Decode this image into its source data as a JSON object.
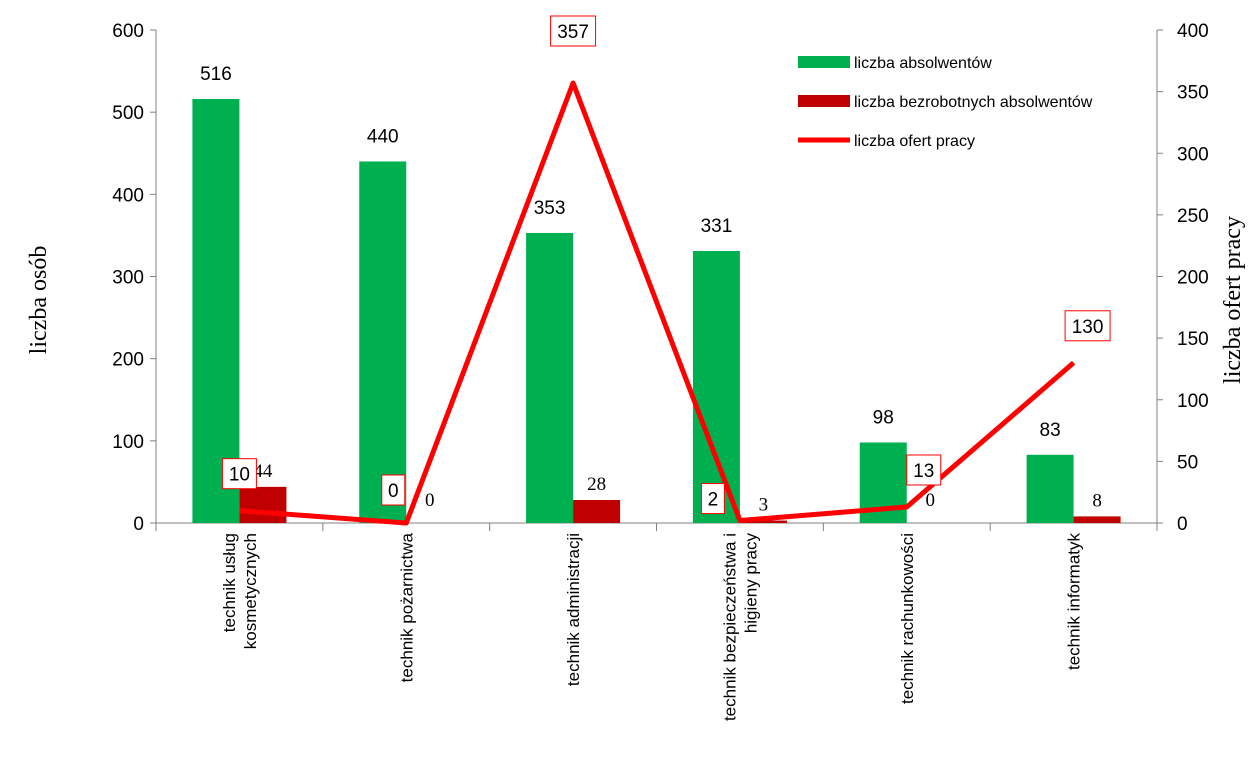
{
  "chart_data": {
    "type": "bar",
    "title": "",
    "categories": [
      [
        "technik usług",
        "kosmetycznych"
      ],
      [
        "technik pożarnictwa"
      ],
      [
        "technik administracji"
      ],
      [
        "technik bezpieczeństwa i",
        "higieny pracy"
      ],
      [
        "technik rachunkowości"
      ],
      [
        "technik informatyk"
      ]
    ],
    "ylabel_left": "liczba osób",
    "ylabel_right": "liczba ofert pracy",
    "ylim_left": [
      0,
      600
    ],
    "ylim_right": [
      0,
      400
    ],
    "yticks_left": [
      0,
      100,
      200,
      300,
      400,
      500,
      600
    ],
    "yticks_right": [
      0,
      50,
      100,
      150,
      200,
      250,
      300,
      350,
      400
    ],
    "series": [
      {
        "name": "liczba absolwentów",
        "type": "bar",
        "axis": "left",
        "color": "#00B050",
        "values": [
          516,
          440,
          353,
          331,
          98,
          83
        ],
        "labels": [
          "516",
          "440",
          "353",
          "331",
          "98",
          "83"
        ]
      },
      {
        "name": "liczba bezrobotnych absolwentów",
        "type": "bar",
        "axis": "left",
        "color": "#C00000",
        "values": [
          44,
          0,
          28,
          3,
          0,
          8
        ],
        "labels": [
          "44",
          "0",
          "28",
          "3",
          "0",
          "8"
        ]
      },
      {
        "name": "liczba ofert pracy",
        "type": "line",
        "axis": "right",
        "color": "#FF0000",
        "values": [
          10,
          0,
          357,
          2,
          13,
          130
        ],
        "labels": [
          "10",
          "0",
          "357",
          "2",
          "13",
          "130"
        ]
      }
    ],
    "legend_position": "top-right",
    "grid": false
  }
}
